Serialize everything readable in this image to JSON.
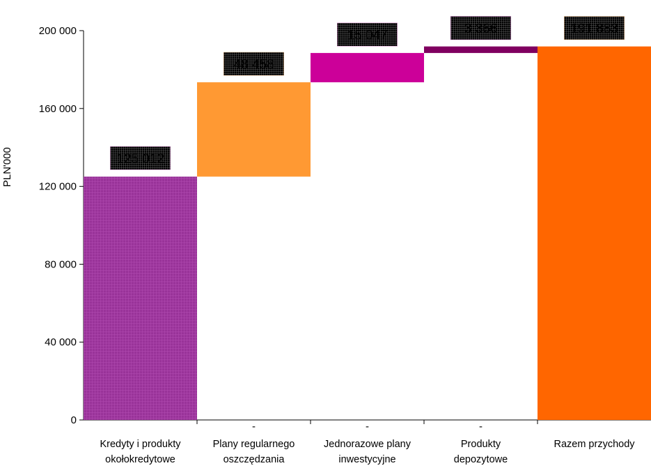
{
  "chart_data": {
    "type": "bar",
    "subtype": "waterfall",
    "ylabel": "PLN'000",
    "ylim": [
      0,
      200000
    ],
    "yticks": [
      0,
      40000,
      80000,
      120000,
      160000,
      200000
    ],
    "ytick_labels": [
      "0",
      "40 000",
      "80 000",
      "120 000",
      "160 000",
      "200 000"
    ],
    "grid": false,
    "bars": [
      {
        "category": [
          "Kredyty i produkty",
          "okołokredytowe"
        ],
        "base": 0,
        "value": 125012,
        "label": "125 012",
        "color": "#993399",
        "label_bg": "#e8a0e0",
        "hatched": true
      },
      {
        "category": [
          "Plany regularnego",
          "oszczędzania"
        ],
        "base": 125012,
        "value": 48458,
        "label": "48 458",
        "color": "#ff9933",
        "label_bg": "#ffcc99",
        "hatched": false
      },
      {
        "category": [
          "Jednorazowe plany",
          "inwestycyjne"
        ],
        "base": 173470,
        "value": 15047,
        "label": "15 047",
        "color": "#cc0099",
        "label_bg": "#f0a0e0",
        "hatched": false
      },
      {
        "category": [
          "Produkty",
          "depozytowe"
        ],
        "base": 188517,
        "value": 3366,
        "label": "3 366",
        "color": "#800060",
        "label_bg": "#b060a8",
        "hatched": false
      },
      {
        "category": [
          "Razem przychody"
        ],
        "base": 0,
        "value": 191883,
        "label": "191 883",
        "color": "#ff6600",
        "label_bg": "#ffcc99",
        "hatched": false
      }
    ],
    "minor_marks": [
      "-",
      "-",
      "-"
    ]
  }
}
